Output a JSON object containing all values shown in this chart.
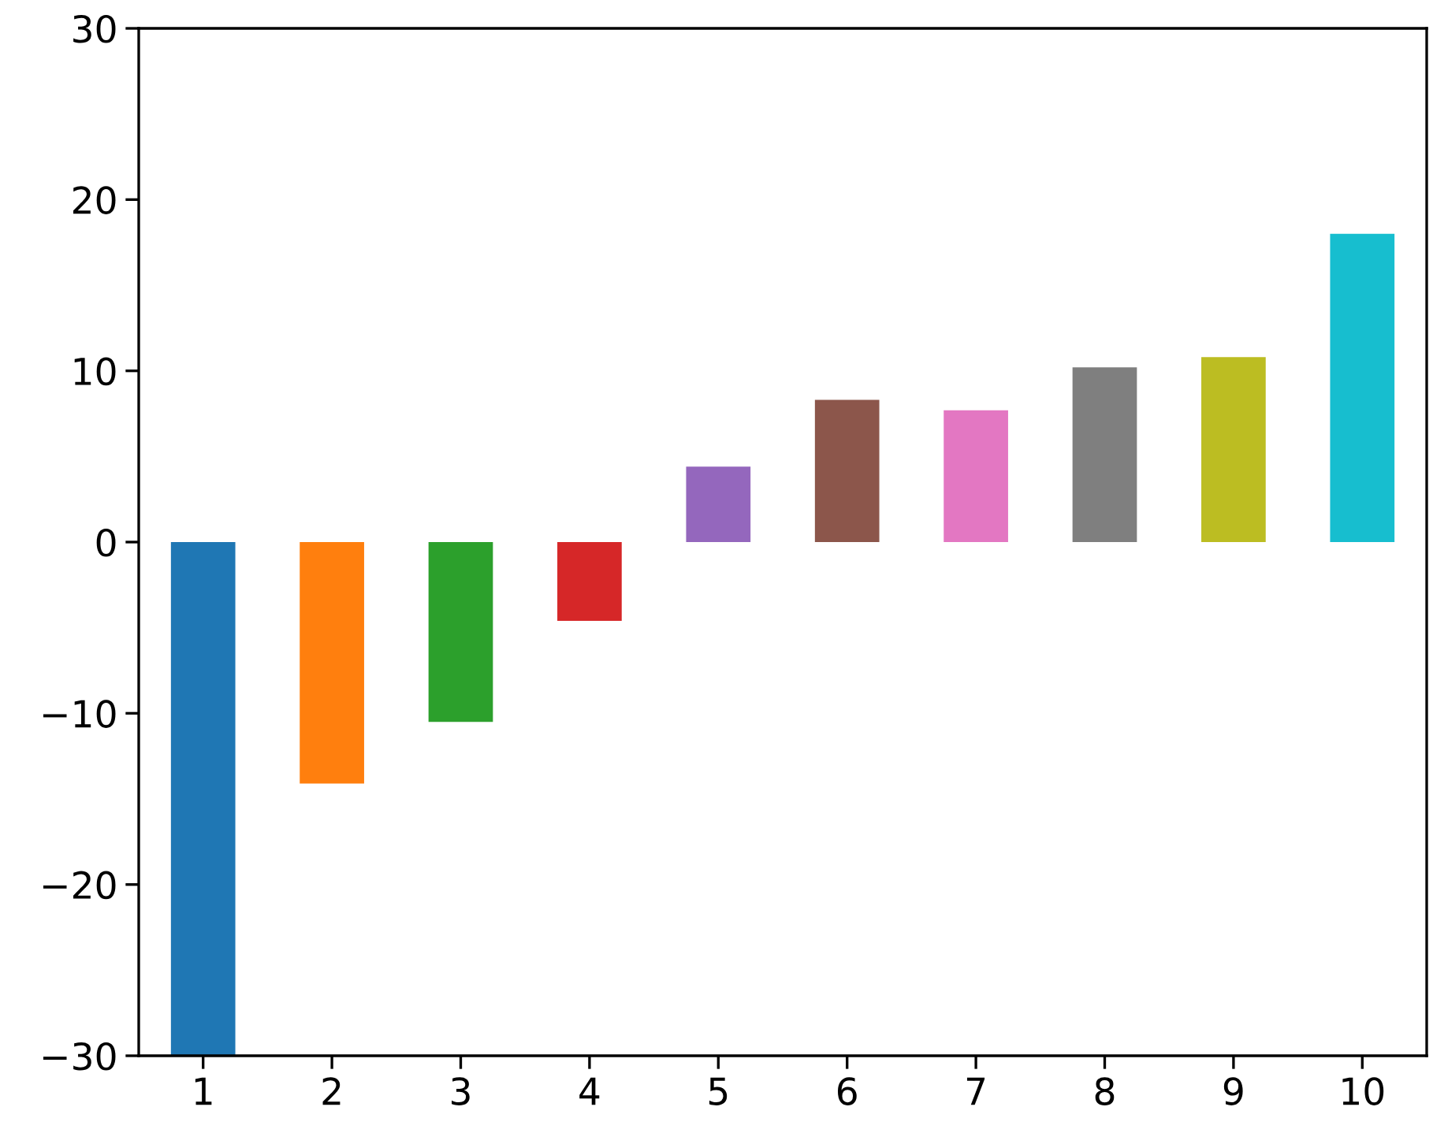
{
  "chart_data": {
    "type": "bar",
    "categories": [
      "1",
      "2",
      "3",
      "4",
      "5",
      "6",
      "7",
      "8",
      "9",
      "10"
    ],
    "values": [
      -30,
      -14.1,
      -10.5,
      -4.6,
      4.4,
      8.3,
      7.7,
      10.2,
      10.8,
      18.0
    ],
    "colors": [
      "#1f77b4",
      "#ff7f0e",
      "#2ca02c",
      "#d62728",
      "#9467bd",
      "#8c564b",
      "#e377c2",
      "#7f7f7f",
      "#bcbd22",
      "#17becf"
    ],
    "ylim": [
      -30,
      30
    ],
    "yticks": [
      -30,
      -20,
      -10,
      0,
      10,
      20,
      30
    ],
    "grid": false
  }
}
